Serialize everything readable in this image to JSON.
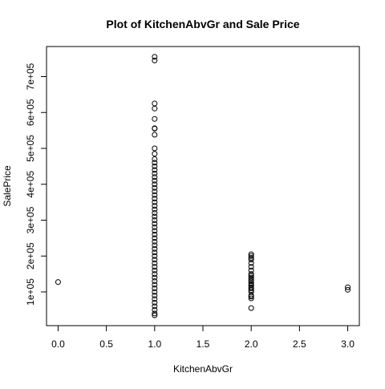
{
  "chart_data": {
    "type": "scatter",
    "title": "Plot of KitchenAbvGr and Sale Price",
    "x_label": "KitchenAbvGr",
    "y_label": "SalePrice",
    "color": "#000000",
    "xlim": [
      -0.12,
      3.12
    ],
    "ylim": [
      6096,
      783804
    ],
    "xticks": [
      {
        "value": 0,
        "label": "0.0"
      },
      {
        "value": 0.5,
        "label": "0.5"
      },
      {
        "value": 1,
        "label": "1.0"
      },
      {
        "value": 1.5,
        "label": "1.5"
      },
      {
        "value": 2,
        "label": "2.0"
      },
      {
        "value": 2.5,
        "label": "2.5"
      },
      {
        "value": 3,
        "label": "3.0"
      }
    ],
    "yticks": [
      {
        "value": 100000,
        "label": "1e+05"
      },
      {
        "value": 200000,
        "label": "2e+05"
      },
      {
        "value": 300000,
        "label": "3e+05"
      },
      {
        "value": 400000,
        "label": "4e+05"
      },
      {
        "value": 500000,
        "label": "5e+05"
      },
      {
        "value": 600000,
        "label": "6e+05"
      },
      {
        "value": 700000,
        "label": "7e+05"
      }
    ],
    "x": [
      0,
      1,
      1,
      1,
      1,
      1,
      1,
      1,
      1,
      1,
      1,
      1,
      1,
      1,
      1,
      1,
      1,
      1,
      1,
      1,
      1,
      1,
      1,
      1,
      1,
      1,
      1,
      1,
      1,
      1,
      1,
      1,
      1,
      1,
      1,
      1,
      1,
      1,
      1,
      1,
      1,
      1,
      1,
      1,
      1,
      1,
      1,
      1,
      1,
      1,
      1,
      1,
      1,
      1,
      1,
      1,
      2,
      2,
      2,
      2,
      2,
      2,
      2,
      2,
      2,
      2,
      2,
      2,
      2,
      2,
      2,
      2,
      2,
      2,
      2,
      2,
      2,
      2,
      2,
      3,
      3
    ],
    "values": [
      127500,
      34900,
      40000,
      50000,
      60000,
      70000,
      80000,
      90000,
      100000,
      110000,
      120000,
      130000,
      140000,
      150000,
      160000,
      170000,
      180000,
      190000,
      200000,
      210000,
      220000,
      230000,
      240000,
      250000,
      260000,
      270000,
      280000,
      290000,
      300000,
      310000,
      320000,
      330000,
      340000,
      350000,
      360000,
      370000,
      380000,
      390000,
      400000,
      410000,
      420000,
      430000,
      440000,
      450000,
      460000,
      470000,
      485000,
      500000,
      538000,
      555000,
      556000,
      582000,
      611000,
      625000,
      745000,
      755000,
      55000,
      82000,
      87000,
      90000,
      100000,
      105000,
      110000,
      113000,
      118000,
      120000,
      125000,
      130000,
      135000,
      140000,
      145000,
      150000,
      160000,
      170000,
      180000,
      190000,
      195000,
      200000,
      205000,
      106000,
      113000
    ]
  }
}
